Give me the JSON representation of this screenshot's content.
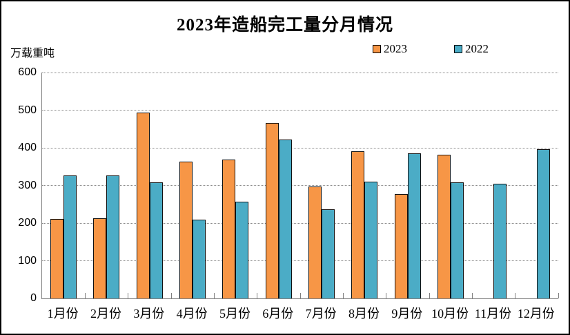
{
  "title": "2023年造船完工量分月情况",
  "unit_label": "万载重吨",
  "legend": {
    "items": [
      {
        "label": "2023",
        "color": "#F79646"
      },
      {
        "label": "2022",
        "color": "#4BACC6"
      }
    ]
  },
  "chart_data": {
    "type": "bar",
    "title": "2023年造船完工量分月情况",
    "ylabel": "万载重吨",
    "xlabel": "",
    "ylim": [
      0,
      600
    ],
    "yticks": [
      0,
      100,
      200,
      300,
      400,
      500,
      600
    ],
    "grid": "horizontal-dotted",
    "legend_position": "top-right",
    "categories": [
      "1月份",
      "2月份",
      "3月份",
      "4月份",
      "5月份",
      "6月份",
      "7月份",
      "8月份",
      "9月份",
      "10月份",
      "11月份",
      "12月份"
    ],
    "series": [
      {
        "name": "2023",
        "color": "#F79646",
        "values": [
          211,
          212,
          494,
          363,
          368,
          466,
          297,
          390,
          277,
          382,
          null,
          null
        ]
      },
      {
        "name": "2022",
        "color": "#4BACC6",
        "values": [
          326,
          327,
          308,
          210,
          257,
          422,
          236,
          310,
          386,
          309,
          304,
          397
        ]
      }
    ]
  }
}
